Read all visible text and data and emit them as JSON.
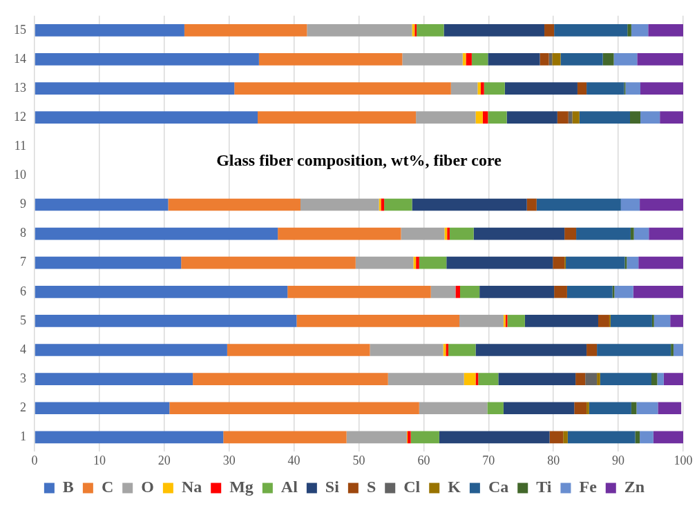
{
  "chart_data": {
    "type": "bar",
    "orientation": "horizontal",
    "stacked": true,
    "title": "Glass fiber composition, wt%, fiber core",
    "categories": [
      "15",
      "14",
      "13",
      "12",
      "11",
      "10",
      "9",
      "8",
      "7",
      "6",
      "5",
      "4",
      "3",
      "2",
      "1"
    ],
    "series": [
      {
        "name": "B",
        "color": "#4472c4",
        "values": [
          23.1,
          34.6,
          30.8,
          34.4,
          null,
          null,
          20.6,
          37.5,
          22.6,
          39.0,
          40.4,
          29.7,
          24.4,
          20.8,
          29.1
        ]
      },
      {
        "name": "C",
        "color": "#ed7d31",
        "values": [
          18.9,
          22.1,
          33.4,
          24.4,
          null,
          null,
          20.4,
          19.0,
          26.9,
          22.1,
          25.1,
          22.0,
          30.1,
          38.5,
          19.0
        ]
      },
      {
        "name": "O",
        "color": "#a5a5a5",
        "values": [
          16.2,
          9.3,
          4.1,
          9.2,
          null,
          null,
          12.1,
          6.7,
          8.9,
          3.8,
          6.8,
          11.3,
          11.7,
          10.5,
          9.3
        ]
      },
      {
        "name": "Na",
        "color": "#ffc000",
        "values": [
          0.4,
          0.5,
          0.5,
          1.1,
          null,
          null,
          0.3,
          0.4,
          0.4,
          0,
          0.3,
          0.4,
          1.8,
          0,
          0.1
        ]
      },
      {
        "name": "Mg",
        "color": "#ff0000",
        "values": [
          0.3,
          0.9,
          0.5,
          0.8,
          null,
          null,
          0.5,
          0.4,
          0.5,
          0.7,
          0.3,
          0.4,
          0.4,
          0,
          0.5
        ]
      },
      {
        "name": "Al",
        "color": "#70ad47",
        "values": [
          4.2,
          2.5,
          3.2,
          2.9,
          null,
          null,
          4.3,
          3.7,
          4.2,
          3.0,
          2.7,
          4.2,
          3.1,
          2.5,
          4.4
        ]
      },
      {
        "name": "Si",
        "color": "#264478",
        "values": [
          15.5,
          8.0,
          11.2,
          7.8,
          null,
          null,
          17.7,
          14.0,
          16.4,
          11.5,
          11.3,
          17.1,
          11.9,
          10.9,
          17.0
        ]
      },
      {
        "name": "S",
        "color": "#9e480e",
        "values": [
          1.5,
          1.4,
          1.4,
          1.7,
          null,
          null,
          1.5,
          1.8,
          1.8,
          2.0,
          1.7,
          1.6,
          1.5,
          1.9,
          2.1
        ]
      },
      {
        "name": "Cl",
        "color": "#636363",
        "values": [
          0,
          0.5,
          0,
          0.6,
          null,
          null,
          0,
          0,
          0,
          0,
          0,
          0,
          1.8,
          0,
          0
        ]
      },
      {
        "name": "K",
        "color": "#997300",
        "values": [
          0,
          1.3,
          0,
          1.1,
          null,
          null,
          0,
          0,
          0.2,
          0,
          0.2,
          0,
          0.5,
          0.4,
          0.7
        ]
      },
      {
        "name": "Ca",
        "color": "#255e91",
        "values": [
          11.3,
          6.5,
          5.8,
          7.8,
          null,
          null,
          13.0,
          8.4,
          9.1,
          7.0,
          6.4,
          11.4,
          7.9,
          6.5,
          10.4
        ]
      },
      {
        "name": "Ti",
        "color": "#43682b",
        "values": [
          0.6,
          1.7,
          0.2,
          1.6,
          null,
          null,
          0,
          0.5,
          0.3,
          0.3,
          0.3,
          0.4,
          0.9,
          0.8,
          0.7
        ]
      },
      {
        "name": "Fe",
        "color": "#698ed0",
        "values": [
          2.6,
          3.6,
          2.3,
          3.0,
          null,
          null,
          2.9,
          2.3,
          1.8,
          2.9,
          2.5,
          1.5,
          1.0,
          3.3,
          2.1
        ]
      },
      {
        "name": "Zn",
        "color": "#7030a0",
        "values": [
          5.4,
          7.1,
          6.6,
          3.6,
          null,
          null,
          6.7,
          5.3,
          6.9,
          7.7,
          2.0,
          0,
          3.0,
          3.6,
          4.6
        ]
      }
    ],
    "xlim": [
      0,
      100
    ],
    "xticks": [
      0,
      10,
      20,
      30,
      40,
      50,
      60,
      70,
      80,
      90,
      100
    ],
    "grid": "x",
    "legend": "bottom"
  }
}
